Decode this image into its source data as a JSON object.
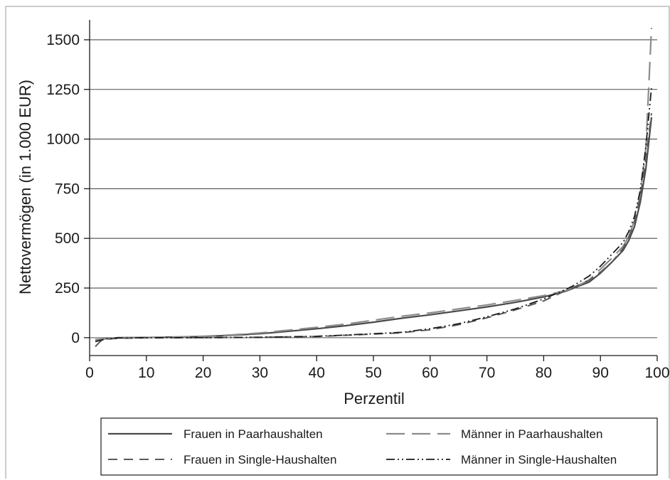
{
  "chart_data": {
    "type": "line",
    "xlabel": "Perzentil",
    "ylabel": "Nettovermögen (in 1.000 EUR)",
    "xlim": [
      0,
      100
    ],
    "ylim": [
      -90,
      1600
    ],
    "xticks": [
      0,
      10,
      20,
      30,
      40,
      50,
      60,
      70,
      80,
      90,
      100
    ],
    "yticks": [
      0,
      250,
      500,
      750,
      1000,
      1250,
      1500
    ],
    "grid": "horizontal",
    "legend_position": "bottom",
    "series": [
      {
        "name": "Frauen in Paarhaushalten",
        "style": "solid",
        "color": "#4a4a4a",
        "points": [
          [
            1,
            -10
          ],
          [
            3,
            -5
          ],
          [
            5,
            0
          ],
          [
            10,
            1
          ],
          [
            15,
            3
          ],
          [
            20,
            6
          ],
          [
            25,
            12
          ],
          [
            30,
            20
          ],
          [
            35,
            32
          ],
          [
            40,
            45
          ],
          [
            45,
            60
          ],
          [
            50,
            78
          ],
          [
            55,
            98
          ],
          [
            60,
            115
          ],
          [
            65,
            135
          ],
          [
            70,
            155
          ],
          [
            75,
            178
          ],
          [
            80,
            205
          ],
          [
            84,
            235
          ],
          [
            86,
            258
          ],
          [
            88,
            280
          ],
          [
            90,
            325
          ],
          [
            92,
            380
          ],
          [
            94,
            440
          ],
          [
            95,
            490
          ],
          [
            96,
            560
          ],
          [
            97,
            680
          ],
          [
            98,
            850
          ],
          [
            99,
            1110
          ]
        ]
      },
      {
        "name": "Männer in Paarhaushalten",
        "style": "longdash",
        "color": "#8c8c8c",
        "points": [
          [
            1,
            -12
          ],
          [
            3,
            -5
          ],
          [
            5,
            0
          ],
          [
            10,
            1
          ],
          [
            15,
            3
          ],
          [
            20,
            7
          ],
          [
            25,
            14
          ],
          [
            30,
            24
          ],
          [
            35,
            38
          ],
          [
            40,
            52
          ],
          [
            45,
            68
          ],
          [
            50,
            88
          ],
          [
            55,
            108
          ],
          [
            60,
            125
          ],
          [
            65,
            145
          ],
          [
            70,
            165
          ],
          [
            75,
            188
          ],
          [
            80,
            212
          ],
          [
            84,
            238
          ],
          [
            86,
            262
          ],
          [
            88,
            290
          ],
          [
            90,
            345
          ],
          [
            92,
            400
          ],
          [
            94,
            460
          ],
          [
            95,
            510
          ],
          [
            96,
            590
          ],
          [
            97,
            720
          ],
          [
            98,
            950
          ],
          [
            99,
            1560
          ]
        ]
      },
      {
        "name": "Frauen in Single-Haushalten",
        "style": "dash",
        "color": "#5a5a5a",
        "points": [
          [
            1,
            -45
          ],
          [
            2,
            -15
          ],
          [
            3,
            -8
          ],
          [
            5,
            -3
          ],
          [
            10,
            -1
          ],
          [
            20,
            0
          ],
          [
            30,
            2
          ],
          [
            40,
            6
          ],
          [
            45,
            12
          ],
          [
            50,
            18
          ],
          [
            55,
            25
          ],
          [
            60,
            40
          ],
          [
            65,
            65
          ],
          [
            70,
            100
          ],
          [
            75,
            140
          ],
          [
            80,
            185
          ],
          [
            83,
            225
          ],
          [
            85,
            250
          ],
          [
            88,
            290
          ],
          [
            90,
            330
          ],
          [
            92,
            380
          ],
          [
            94,
            450
          ],
          [
            95,
            510
          ],
          [
            96,
            580
          ],
          [
            97,
            700
          ],
          [
            98,
            900
          ],
          [
            99,
            1130
          ]
        ]
      },
      {
        "name": "Männer in Single-Haushalten",
        "style": "dashdot",
        "color": "#1a1a1a",
        "points": [
          [
            1,
            -20
          ],
          [
            3,
            -6
          ],
          [
            5,
            -2
          ],
          [
            10,
            0
          ],
          [
            20,
            0
          ],
          [
            30,
            2
          ],
          [
            40,
            7
          ],
          [
            45,
            13
          ],
          [
            50,
            20
          ],
          [
            55,
            27
          ],
          [
            60,
            45
          ],
          [
            65,
            70
          ],
          [
            70,
            105
          ],
          [
            75,
            145
          ],
          [
            80,
            195
          ],
          [
            83,
            232
          ],
          [
            85,
            258
          ],
          [
            88,
            310
          ],
          [
            90,
            360
          ],
          [
            92,
            420
          ],
          [
            94,
            480
          ],
          [
            95,
            535
          ],
          [
            96,
            610
          ],
          [
            97,
            740
          ],
          [
            98,
            960
          ],
          [
            99,
            1260
          ]
        ]
      }
    ]
  }
}
